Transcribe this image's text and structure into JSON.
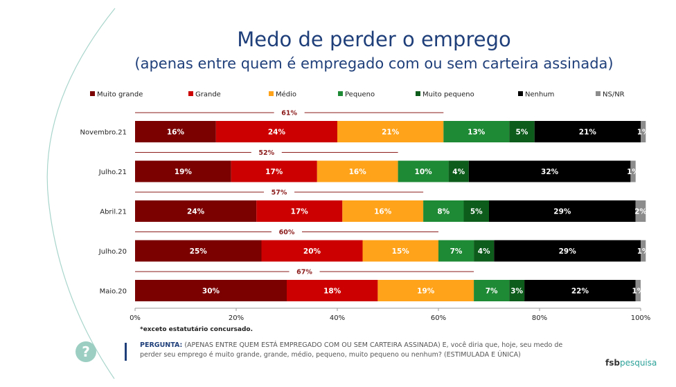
{
  "title": "Medo de perder o emprego",
  "subtitle": "(apenas entre quem é empregado com ou sem carteira assinada)",
  "chart_data": {
    "type": "bar",
    "orientation": "horizontal",
    "stacked": true,
    "categories": [
      "Novembro.21",
      "Julho.21",
      "Abril.21",
      "Julho.20",
      "Maio.20"
    ],
    "series": [
      {
        "name": "Muito grande",
        "color": "#7b0000",
        "values": [
          16,
          19,
          24,
          25,
          30
        ]
      },
      {
        "name": "Grande",
        "color": "#cc0000",
        "values": [
          24,
          17,
          17,
          20,
          18
        ]
      },
      {
        "name": "Médio",
        "color": "#ffa31a",
        "values": [
          21,
          16,
          16,
          15,
          19
        ]
      },
      {
        "name": "Pequeno",
        "color": "#1f8a36",
        "values": [
          13,
          10,
          8,
          7,
          7
        ]
      },
      {
        "name": "Muito pequeno",
        "color": "#0d5c1c",
        "values": [
          5,
          4,
          5,
          4,
          3
        ]
      },
      {
        "name": "Nenhum",
        "color": "#000000",
        "values": [
          21,
          32,
          29,
          29,
          22
        ]
      },
      {
        "name": "NS/NR",
        "color": "#8c8c8c",
        "values": [
          1,
          1,
          2,
          1,
          1
        ]
      }
    ],
    "annotations": [
      {
        "category": "Novembro.21",
        "text": "61%",
        "value": 61
      },
      {
        "category": "Julho.21",
        "text": "52%",
        "value": 52
      },
      {
        "category": "Abril.21",
        "text": "57%",
        "value": 57
      },
      {
        "category": "Julho.20",
        "text": "60%",
        "value": 60
      },
      {
        "category": "Maio.20",
        "text": "67%",
        "value": 67
      }
    ],
    "xlim": [
      0,
      100
    ],
    "xticks": [
      "0%",
      "20%",
      "40%",
      "60%",
      "80%",
      "100%"
    ],
    "legend_position": "top",
    "annotation_color": "#8b1a1a"
  },
  "footnote": "*exceto estatutário concursado.",
  "question": {
    "label": "PERGUNTA:",
    "text": " (APENAS ENTRE QUEM ESTÁ EMPREGADO COM OU SEM CARTEIRA ASSINADA) E, você diria que, hoje, seu medo de perder seu emprego é muito grande, grande, médio, pequeno, muito pequeno ou nenhum? (ESTIMULADA E ÚNICA)"
  },
  "help_icon": "?",
  "logo": {
    "part1": "fsb",
    "part2": "pesquisa"
  }
}
